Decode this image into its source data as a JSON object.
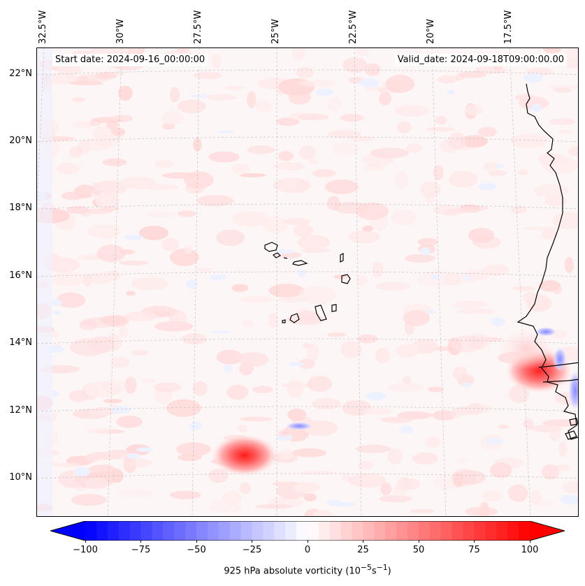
{
  "map": {
    "lon_labels": [
      "32.5°W",
      "30°W",
      "27.5°W",
      "25°W",
      "22.5°W",
      "20°W",
      "17.5°W"
    ],
    "lat_labels": [
      "22°N",
      "20°N",
      "18°N",
      "16°N",
      "14°N",
      "12°N",
      "10°N"
    ],
    "start_date": "Start date: 2024-09-16_00:00:00",
    "valid_date": "Valid_date: 2024-09-18T09:00:00.00",
    "features": [
      "Cabo Verde islands",
      "West African coastline",
      "positive vorticity maximum near 10.7°N 24.7°W",
      "positive vorticity maximum near 13.2°N 16.3°W"
    ]
  },
  "colorbar": {
    "ticks": [
      "−100",
      "−75",
      "−50",
      "−25",
      "0",
      "25",
      "50",
      "75",
      "100"
    ],
    "label": "925 hPa absolute vorticity (10",
    "label_exp1": "−5",
    "label_mid": "s",
    "label_exp2": "−1",
    "label_end": ")",
    "colors": {
      "min": "#0000ff",
      "mid": "#ffffff",
      "max": "#ff0000"
    }
  }
}
